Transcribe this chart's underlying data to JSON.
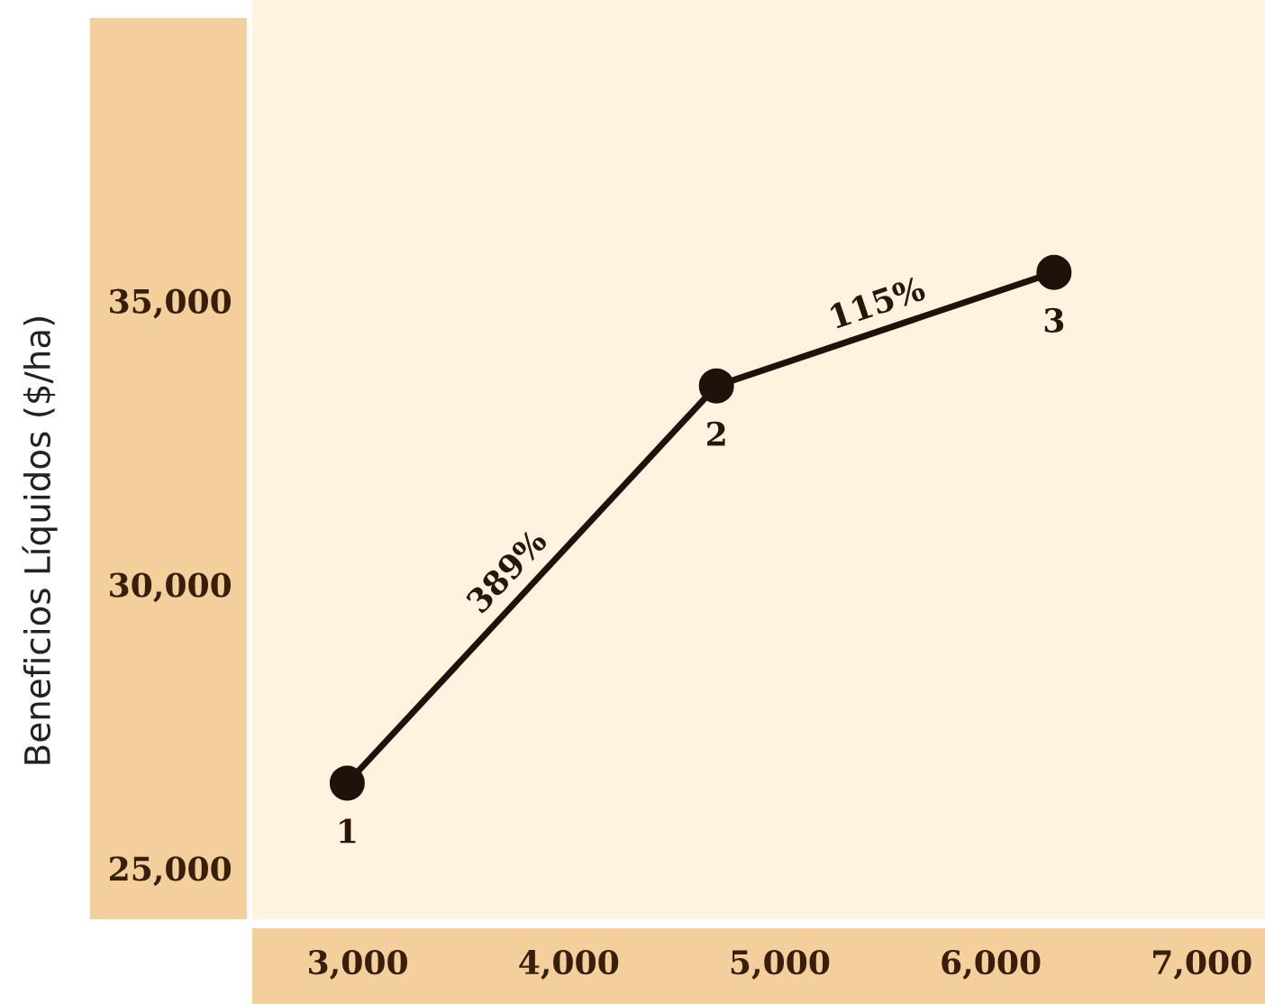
{
  "chart_data": {
    "type": "line",
    "ylabel": "Beneficios Líquidos ($/ha)",
    "x": [
      2950,
      4700,
      6300
    ],
    "series": [
      {
        "color": "#1e120a",
        "values": [
          26500,
          33500,
          35500
        ]
      }
    ],
    "xlim": [
      2500,
      7300
    ],
    "xticks": [
      {
        "value": 3000,
        "label": "3,000"
      },
      {
        "value": 4000,
        "label": "4,000"
      },
      {
        "value": 5000,
        "label": "5,000"
      },
      {
        "value": 6000,
        "label": "6,000"
      },
      {
        "value": 7000,
        "label": "7,000"
      }
    ],
    "ylim": [
      24100,
      40300
    ],
    "yticks": [
      {
        "value": 25000,
        "label": "25,000"
      },
      {
        "value": 30000,
        "label": "30,000"
      },
      {
        "value": 35000,
        "label": "35,000"
      }
    ],
    "marker": "circle",
    "line_style": "solid",
    "grid": false,
    "legend": false,
    "annotations": [
      {
        "text": "1",
        "x": 2950,
        "y": 26500
      },
      {
        "text": "2",
        "x": 4700,
        "y": 33500
      },
      {
        "text": "3",
        "x": 6300,
        "y": 35500
      },
      {
        "text": "389%",
        "x": 3800,
        "y": 29900
      },
      {
        "text": "115%",
        "x": 5500,
        "y": 34500
      }
    ]
  }
}
